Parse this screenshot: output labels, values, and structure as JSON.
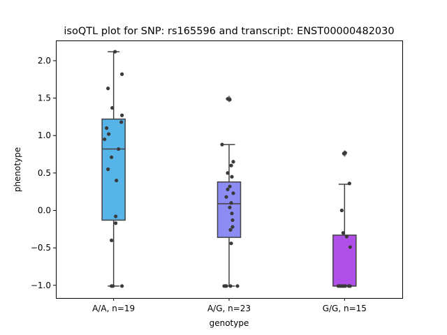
{
  "chart_data": {
    "type": "box",
    "title": "isoQTL plot for SNP: rs165596 and transcript: ENST00000482030",
    "xlabel": "genotype",
    "ylabel": "phenotype",
    "ylim": [
      -1.17,
      2.27
    ],
    "yticks": [
      -1.0,
      -0.5,
      0.0,
      0.5,
      1.0,
      1.5,
      2.0
    ],
    "ytick_labels": [
      "−1.0",
      "−0.5",
      "0.0",
      "0.5",
      "1.0",
      "1.5",
      "2.0"
    ],
    "grid": false,
    "categories": [
      "A/A, n=19",
      "A/G, n=23",
      "G/G, n=15"
    ],
    "colors": [
      "#56b4e9",
      "#8c8cf4",
      "#b150e8"
    ],
    "boxes": [
      {
        "whisker_low": -1.01,
        "q1": -0.13,
        "median": 0.82,
        "q3": 1.22,
        "whisker_high": 2.12,
        "outliers": []
      },
      {
        "whisker_low": -1.01,
        "q1": -0.36,
        "median": 0.09,
        "q3": 0.38,
        "whisker_high": 0.88,
        "outliers": [
          1.48,
          1.5
        ]
      },
      {
        "whisker_low": -1.01,
        "q1": -1.01,
        "median": -1.01,
        "q3": -0.33,
        "whisker_high": 0.35,
        "outliers": [
          0.75,
          0.77
        ]
      }
    ],
    "points": [
      [
        [
          0.02,
          2.12
        ],
        [
          0.12,
          1.82
        ],
        [
          -0.08,
          1.63
        ],
        [
          -0.02,
          1.37
        ],
        [
          0.12,
          1.27
        ],
        [
          0.11,
          1.18
        ],
        [
          -0.1,
          1.1
        ],
        [
          -0.07,
          1.02
        ],
        [
          -0.13,
          0.95
        ],
        [
          0.07,
          0.82
        ],
        [
          -0.03,
          0.71
        ],
        [
          -0.08,
          0.55
        ],
        [
          0.04,
          0.4
        ],
        [
          0.03,
          -0.08
        ],
        [
          0.03,
          -0.17
        ],
        [
          -0.03,
          -0.4
        ],
        [
          -0.03,
          -1.01
        ],
        [
          -0.01,
          -1.01
        ],
        [
          0.12,
          -1.01
        ]
      ],
      [
        [
          -0.1,
          0.88
        ],
        [
          0.06,
          0.65
        ],
        [
          0.03,
          0.6
        ],
        [
          -0.02,
          0.5
        ],
        [
          0.04,
          0.45
        ],
        [
          0.01,
          0.32
        ],
        [
          -0.02,
          0.28
        ],
        [
          0.06,
          0.23
        ],
        [
          -0.04,
          0.18
        ],
        [
          0.03,
          0.1
        ],
        [
          0.01,
          0.04
        ],
        [
          0.04,
          -0.04
        ],
        [
          0.05,
          -0.13
        ],
        [
          0.05,
          -0.22
        ],
        [
          0.02,
          -0.26
        ],
        [
          0.03,
          -0.44
        ],
        [
          -0.07,
          -1.01
        ],
        [
          -0.05,
          -1.01
        ],
        [
          -0.04,
          -1.01
        ],
        [
          0.02,
          -1.01
        ],
        [
          0.12,
          -1.01
        ],
        [
          -0.02,
          1.49
        ],
        [
          0.01,
          1.48
        ]
      ],
      [
        [
          -0.01,
          0.76
        ],
        [
          0.01,
          0.77
        ],
        [
          0.07,
          0.36
        ],
        [
          -0.04,
          0.0
        ],
        [
          -0.02,
          -0.3
        ],
        [
          0.03,
          -0.35
        ],
        [
          0.08,
          -0.49
        ],
        [
          -0.09,
          -1.01
        ],
        [
          -0.07,
          -1.01
        ],
        [
          -0.05,
          -1.01
        ],
        [
          -0.03,
          -1.01
        ],
        [
          -0.01,
          -1.01
        ],
        [
          0.01,
          -1.01
        ],
        [
          0.06,
          -1.01
        ],
        [
          0.08,
          -1.01
        ]
      ]
    ]
  }
}
